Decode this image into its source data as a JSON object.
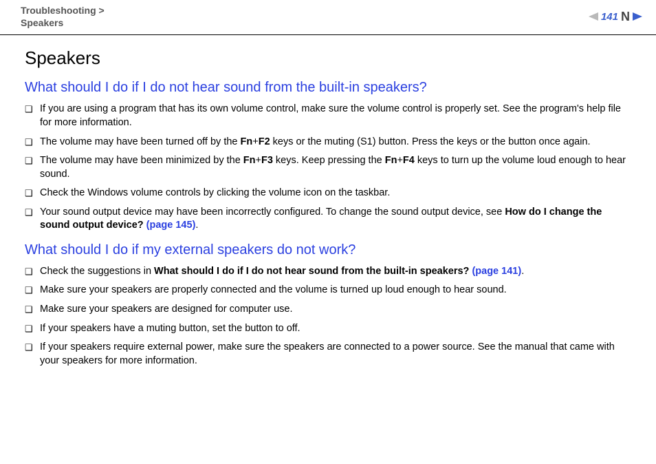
{
  "header": {
    "breadcrumb_line1": "Troubleshooting >",
    "breadcrumb_line2": "Speakers",
    "page_number": "141",
    "n_glyph": "N",
    "arrow_color_left": "#b9b9b9",
    "arrow_color_right": "#3a5fcd"
  },
  "title": "Speakers",
  "sections": [
    {
      "question": "What should I do if I do not hear sound from the built-in speakers?",
      "items": [
        [
          {
            "t": "If you are using a program that has its own volume control, make sure the volume control is properly set. See the program's help file for more information."
          }
        ],
        [
          {
            "t": "The volume may have been turned off by the "
          },
          {
            "t": "Fn",
            "b": true
          },
          {
            "t": "+"
          },
          {
            "t": "F2",
            "b": true
          },
          {
            "t": " keys or the muting (S1) button. Press the keys or the button once again."
          }
        ],
        [
          {
            "t": "The volume may have been minimized by the "
          },
          {
            "t": "Fn",
            "b": true
          },
          {
            "t": "+"
          },
          {
            "t": "F3",
            "b": true
          },
          {
            "t": " keys. Keep pressing the "
          },
          {
            "t": "Fn",
            "b": true
          },
          {
            "t": "+"
          },
          {
            "t": "F4",
            "b": true
          },
          {
            "t": " keys to turn up the volume loud enough to hear sound."
          }
        ],
        [
          {
            "t": "Check the Windows volume controls by clicking the volume icon on the taskbar."
          }
        ],
        [
          {
            "t": "Your sound output device may have been incorrectly configured. To change the sound output device, see "
          },
          {
            "t": "How do I change the sound output device? ",
            "b": true
          },
          {
            "t": "(page 145)",
            "link": true
          },
          {
            "t": "."
          }
        ]
      ]
    },
    {
      "question": "What should I do if my external speakers do not work?",
      "items": [
        [
          {
            "t": "Check the suggestions in "
          },
          {
            "t": "What should I do if I do not hear sound from the built-in speakers? ",
            "b": true
          },
          {
            "t": "(page 141)",
            "link": true
          },
          {
            "t": "."
          }
        ],
        [
          {
            "t": "Make sure your speakers are properly connected and the volume is turned up loud enough to hear sound."
          }
        ],
        [
          {
            "t": "Make sure your speakers are designed for computer use."
          }
        ],
        [
          {
            "t": "If your speakers have a muting button, set the button to off."
          }
        ],
        [
          {
            "t": "If your speakers require external power, make sure the speakers are connected to a power source. See the manual that came with your speakers for more information."
          }
        ]
      ]
    }
  ],
  "bullet_glyph": "❑"
}
